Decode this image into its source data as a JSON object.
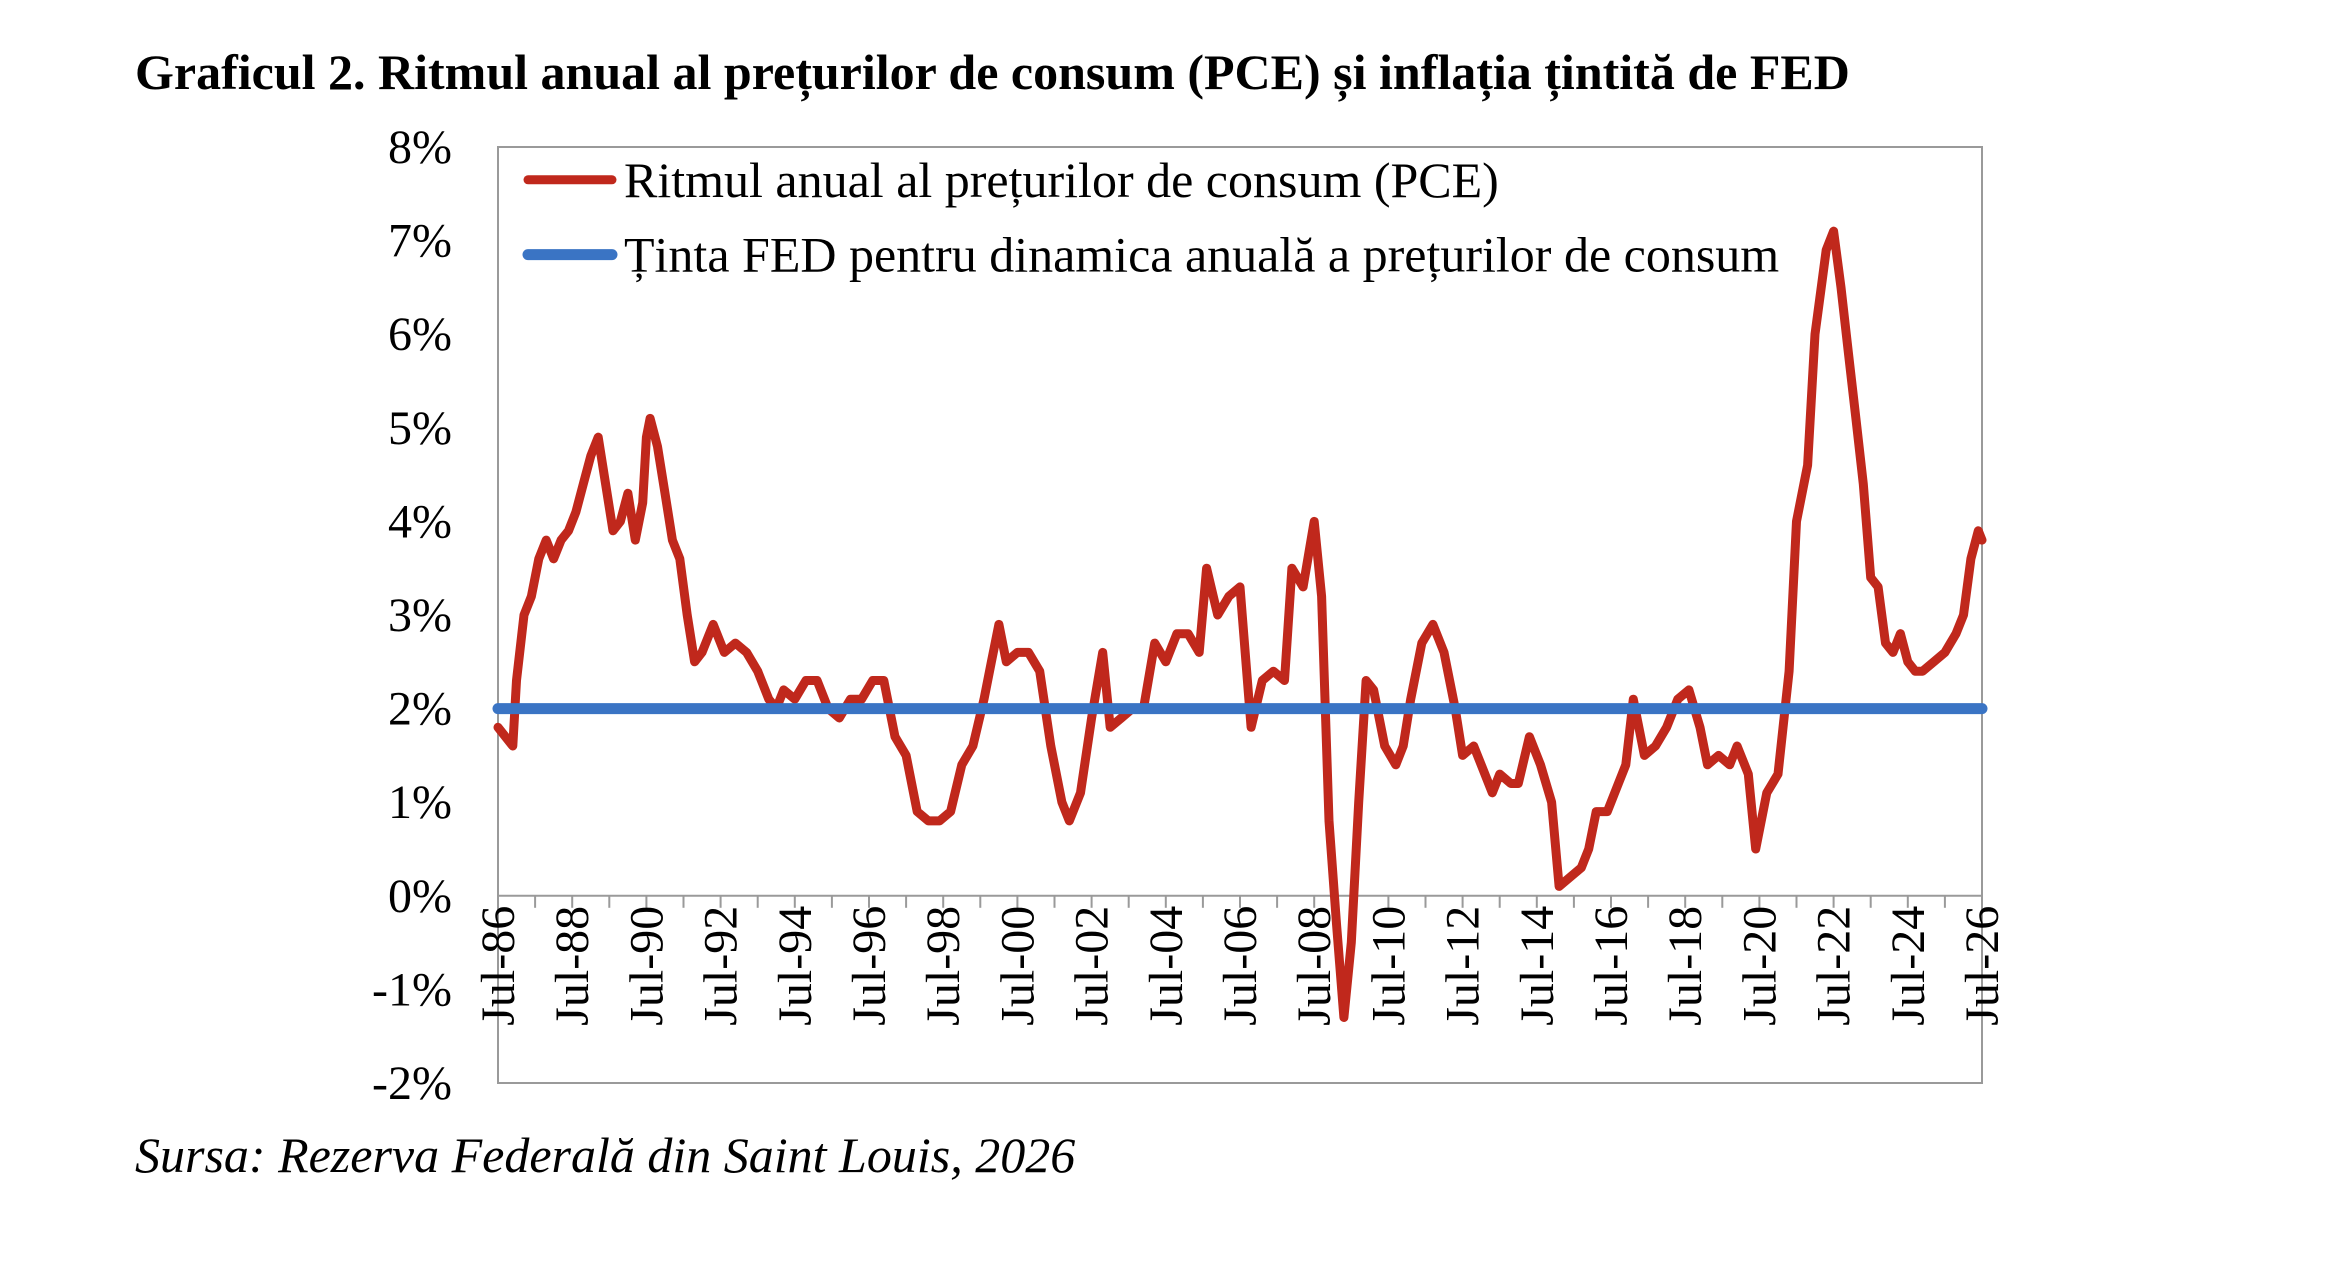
{
  "title": "Graficul 2. Ritmul anual al prețurilor de consum (PCE) și inflația țintită de FED",
  "source": "Sursa: Rezerva Federală din Saint Louis, 2026",
  "chart_data": {
    "type": "line",
    "title": "Graficul 2. Ritmul anual al prețurilor de consum (PCE) și inflația țintită de FED",
    "xlabel": "",
    "ylabel": "",
    "ylim": [
      -2,
      8
    ],
    "xlim": [
      1986.5,
      2026.5
    ],
    "y_tick_values": [
      -2,
      -1,
      0,
      1,
      2,
      3,
      4,
      5,
      6,
      7,
      8
    ],
    "y_tick_labels": [
      "-2%",
      "-1%",
      "0%",
      "1%",
      "2%",
      "3%",
      "4%",
      "5%",
      "6%",
      "7%",
      "8%"
    ],
    "x_tick_values": [
      1986.5,
      1988.5,
      1990.5,
      1992.5,
      1994.5,
      1996.5,
      1998.5,
      2000.5,
      2002.5,
      2004.5,
      2006.5,
      2008.5,
      2010.5,
      2012.5,
      2014.5,
      2016.5,
      2018.5,
      2020.5,
      2022.5,
      2024.5,
      2026.5
    ],
    "x_tick_labels": [
      "Jul-86",
      "Jul-88",
      "Jul-90",
      "Jul-92",
      "Jul-94",
      "Jul-96",
      "Jul-98",
      "Jul-00",
      "Jul-02",
      "Jul-04",
      "Jul-06",
      "Jul-08",
      "Jul-10",
      "Jul-12",
      "Jul-14",
      "Jul-16",
      "Jul-18",
      "Jul-20",
      "Jul-22",
      "Jul-24",
      "Jul-26"
    ],
    "grid": false,
    "legend_position": "top-left",
    "series": [
      {
        "name": "Ritmul anual al prețurilor de consum (PCE)",
        "color": "#C0281C",
        "points": [
          [
            1986.5,
            1.8
          ],
          [
            1986.7,
            1.7
          ],
          [
            1986.9,
            1.6
          ],
          [
            1987.0,
            2.3
          ],
          [
            1987.2,
            3.0
          ],
          [
            1987.4,
            3.2
          ],
          [
            1987.6,
            3.6
          ],
          [
            1987.8,
            3.8
          ],
          [
            1988.0,
            3.6
          ],
          [
            1988.2,
            3.8
          ],
          [
            1988.4,
            3.9
          ],
          [
            1988.6,
            4.1
          ],
          [
            1988.8,
            4.4
          ],
          [
            1989.0,
            4.7
          ],
          [
            1989.2,
            4.9
          ],
          [
            1989.4,
            4.4
          ],
          [
            1989.6,
            3.9
          ],
          [
            1989.8,
            4.0
          ],
          [
            1990.0,
            4.3
          ],
          [
            1990.2,
            3.8
          ],
          [
            1990.4,
            4.2
          ],
          [
            1990.5,
            4.9
          ],
          [
            1990.6,
            5.1
          ],
          [
            1990.8,
            4.8
          ],
          [
            1991.0,
            4.3
          ],
          [
            1991.2,
            3.8
          ],
          [
            1991.4,
            3.6
          ],
          [
            1991.6,
            3.0
          ],
          [
            1991.8,
            2.5
          ],
          [
            1992.0,
            2.6
          ],
          [
            1992.3,
            2.9
          ],
          [
            1992.6,
            2.6
          ],
          [
            1992.9,
            2.7
          ],
          [
            1993.2,
            2.6
          ],
          [
            1993.5,
            2.4
          ],
          [
            1993.8,
            2.1
          ],
          [
            1994.0,
            2.0
          ],
          [
            1994.2,
            2.2
          ],
          [
            1994.5,
            2.1
          ],
          [
            1994.8,
            2.3
          ],
          [
            1995.1,
            2.3
          ],
          [
            1995.4,
            2.0
          ],
          [
            1995.7,
            1.9
          ],
          [
            1996.0,
            2.1
          ],
          [
            1996.3,
            2.1
          ],
          [
            1996.6,
            2.3
          ],
          [
            1996.9,
            2.3
          ],
          [
            1997.2,
            1.7
          ],
          [
            1997.5,
            1.5
          ],
          [
            1997.8,
            0.9
          ],
          [
            1998.1,
            0.8
          ],
          [
            1998.4,
            0.8
          ],
          [
            1998.7,
            0.9
          ],
          [
            1999.0,
            1.4
          ],
          [
            1999.3,
            1.6
          ],
          [
            1999.6,
            2.1
          ],
          [
            1999.8,
            2.5
          ],
          [
            2000.0,
            2.9
          ],
          [
            2000.2,
            2.5
          ],
          [
            2000.5,
            2.6
          ],
          [
            2000.8,
            2.6
          ],
          [
            2001.1,
            2.4
          ],
          [
            2001.4,
            1.6
          ],
          [
            2001.7,
            1.0
          ],
          [
            2001.9,
            0.8
          ],
          [
            2002.2,
            1.1
          ],
          [
            2002.5,
            1.9
          ],
          [
            2002.8,
            2.6
          ],
          [
            2003.0,
            1.8
          ],
          [
            2003.3,
            1.9
          ],
          [
            2003.6,
            2.0
          ],
          [
            2003.9,
            2.0
          ],
          [
            2004.2,
            2.7
          ],
          [
            2004.5,
            2.5
          ],
          [
            2004.8,
            2.8
          ],
          [
            2005.1,
            2.8
          ],
          [
            2005.4,
            2.6
          ],
          [
            2005.6,
            3.5
          ],
          [
            2005.9,
            3.0
          ],
          [
            2006.2,
            3.2
          ],
          [
            2006.5,
            3.3
          ],
          [
            2006.8,
            1.8
          ],
          [
            2007.1,
            2.3
          ],
          [
            2007.4,
            2.4
          ],
          [
            2007.7,
            2.3
          ],
          [
            2007.9,
            3.5
          ],
          [
            2008.2,
            3.3
          ],
          [
            2008.5,
            4.0
          ],
          [
            2008.7,
            3.2
          ],
          [
            2008.9,
            0.8
          ],
          [
            2009.1,
            -0.3
          ],
          [
            2009.3,
            -1.3
          ],
          [
            2009.5,
            -0.5
          ],
          [
            2009.7,
            1.0
          ],
          [
            2009.9,
            2.3
          ],
          [
            2010.1,
            2.2
          ],
          [
            2010.4,
            1.6
          ],
          [
            2010.7,
            1.4
          ],
          [
            2010.9,
            1.6
          ],
          [
            2011.1,
            2.1
          ],
          [
            2011.4,
            2.7
          ],
          [
            2011.7,
            2.9
          ],
          [
            2012.0,
            2.6
          ],
          [
            2012.3,
            2.0
          ],
          [
            2012.5,
            1.5
          ],
          [
            2012.8,
            1.6
          ],
          [
            2013.0,
            1.4
          ],
          [
            2013.3,
            1.1
          ],
          [
            2013.5,
            1.3
          ],
          [
            2013.8,
            1.2
          ],
          [
            2014.0,
            1.2
          ],
          [
            2014.3,
            1.7
          ],
          [
            2014.6,
            1.4
          ],
          [
            2014.9,
            1.0
          ],
          [
            2015.1,
            0.1
          ],
          [
            2015.4,
            0.2
          ],
          [
            2015.7,
            0.3
          ],
          [
            2015.9,
            0.5
          ],
          [
            2016.1,
            0.9
          ],
          [
            2016.4,
            0.9
          ],
          [
            2016.7,
            1.2
          ],
          [
            2016.9,
            1.4
          ],
          [
            2017.1,
            2.1
          ],
          [
            2017.4,
            1.5
          ],
          [
            2017.7,
            1.6
          ],
          [
            2018.0,
            1.8
          ],
          [
            2018.3,
            2.1
          ],
          [
            2018.6,
            2.2
          ],
          [
            2018.9,
            1.8
          ],
          [
            2019.1,
            1.4
          ],
          [
            2019.4,
            1.5
          ],
          [
            2019.7,
            1.4
          ],
          [
            2019.9,
            1.6
          ],
          [
            2020.2,
            1.3
          ],
          [
            2020.4,
            0.5
          ],
          [
            2020.7,
            1.1
          ],
          [
            2021.0,
            1.3
          ],
          [
            2021.3,
            2.4
          ],
          [
            2021.5,
            4.0
          ],
          [
            2021.8,
            4.6
          ],
          [
            2022.0,
            6.0
          ],
          [
            2022.2,
            6.6
          ],
          [
            2022.3,
            6.9
          ],
          [
            2022.5,
            7.1
          ],
          [
            2022.7,
            6.5
          ],
          [
            2022.9,
            5.8
          ],
          [
            2023.1,
            5.1
          ],
          [
            2023.3,
            4.4
          ],
          [
            2023.5,
            3.4
          ],
          [
            2023.7,
            3.3
          ],
          [
            2023.9,
            2.7
          ],
          [
            2024.1,
            2.6
          ],
          [
            2024.3,
            2.8
          ],
          [
            2024.5,
            2.5
          ],
          [
            2024.7,
            2.4
          ],
          [
            2024.9,
            2.4
          ],
          [
            2025.2,
            2.5
          ],
          [
            2025.5,
            2.6
          ],
          [
            2025.8,
            2.8
          ],
          [
            2026.0,
            3.0
          ],
          [
            2026.2,
            3.6
          ],
          [
            2026.4,
            3.9
          ],
          [
            2026.5,
            3.8
          ]
        ]
      },
      {
        "name": "Ținta FED pentru dinamica anuală a prețurilor de consum",
        "color": "#3A74C4",
        "points": [
          [
            1986.5,
            2.0
          ],
          [
            2026.5,
            2.0
          ]
        ]
      }
    ]
  }
}
